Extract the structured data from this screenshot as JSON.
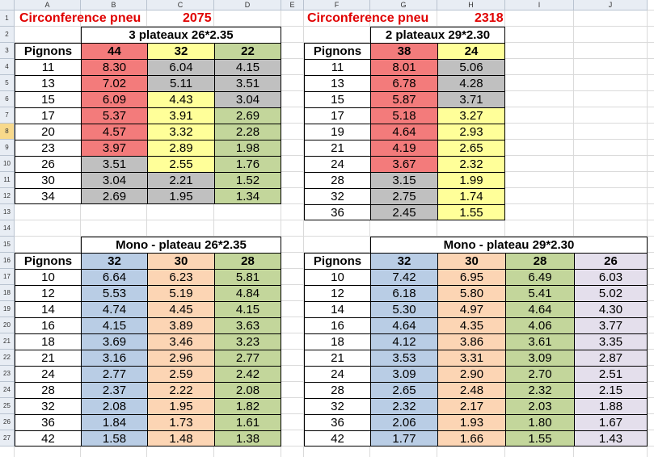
{
  "colors": {
    "red": "#f37b7b",
    "gray": "#c0c0c0",
    "yellow": "#ffff99",
    "green": "#c3d69b",
    "blue": "#b9cde5",
    "orange": "#fcd5b4",
    "lavender": "#e4dfec",
    "title_red": "#e00000"
  },
  "columns": [
    "A",
    "B",
    "C",
    "D",
    "E",
    "F",
    "G",
    "H",
    "I",
    "J"
  ],
  "rows": [
    "1",
    "2",
    "3",
    "4",
    "5",
    "6",
    "7",
    "8",
    "9",
    "10",
    "11",
    "12",
    "13",
    "14",
    "15",
    "16",
    "17",
    "18",
    "19",
    "20",
    "21",
    "22",
    "23",
    "24",
    "25",
    "26",
    "27"
  ],
  "active_rows": [
    "8"
  ],
  "left_title": {
    "label": "Circonference pneu",
    "value": "2075"
  },
  "right_title": {
    "label": "Circonference pneu",
    "value": "2318"
  },
  "table1": {
    "caption": "3 plateaux  26*2.35",
    "row_label": "Pignons",
    "headers": [
      {
        "label": "44",
        "color": "red"
      },
      {
        "label": "32",
        "color": "yellow"
      },
      {
        "label": "22",
        "color": "green"
      }
    ],
    "rows": [
      {
        "p": "11",
        "v": [
          [
            "8.30",
            "red"
          ],
          [
            "6.04",
            "gray"
          ],
          [
            "4.15",
            "gray"
          ]
        ]
      },
      {
        "p": "13",
        "v": [
          [
            "7.02",
            "red"
          ],
          [
            "5.11",
            "gray"
          ],
          [
            "3.51",
            "gray"
          ]
        ]
      },
      {
        "p": "15",
        "v": [
          [
            "6.09",
            "red"
          ],
          [
            "4.43",
            "yellow"
          ],
          [
            "3.04",
            "gray"
          ]
        ]
      },
      {
        "p": "17",
        "v": [
          [
            "5.37",
            "red"
          ],
          [
            "3.91",
            "yellow"
          ],
          [
            "2.69",
            "green"
          ]
        ]
      },
      {
        "p": "20",
        "v": [
          [
            "4.57",
            "red"
          ],
          [
            "3.32",
            "yellow"
          ],
          [
            "2.28",
            "green"
          ]
        ]
      },
      {
        "p": "23",
        "v": [
          [
            "3.97",
            "red"
          ],
          [
            "2.89",
            "yellow"
          ],
          [
            "1.98",
            "green"
          ]
        ]
      },
      {
        "p": "26",
        "v": [
          [
            "3.51",
            "gray"
          ],
          [
            "2.55",
            "yellow"
          ],
          [
            "1.76",
            "green"
          ]
        ]
      },
      {
        "p": "30",
        "v": [
          [
            "3.04",
            "gray"
          ],
          [
            "2.21",
            "gray"
          ],
          [
            "1.52",
            "green"
          ]
        ]
      },
      {
        "p": "34",
        "v": [
          [
            "2.69",
            "gray"
          ],
          [
            "1.95",
            "gray"
          ],
          [
            "1.34",
            "green"
          ]
        ]
      }
    ]
  },
  "table2": {
    "caption": "2 plateaux 29*2.30",
    "row_label": "Pignons",
    "headers": [
      {
        "label": "38",
        "color": "red"
      },
      {
        "label": "24",
        "color": "yellow"
      }
    ],
    "rows": [
      {
        "p": "11",
        "v": [
          [
            "8.01",
            "red"
          ],
          [
            "5.06",
            "gray"
          ]
        ]
      },
      {
        "p": "13",
        "v": [
          [
            "6.78",
            "red"
          ],
          [
            "4.28",
            "gray"
          ]
        ]
      },
      {
        "p": "15",
        "v": [
          [
            "5.87",
            "red"
          ],
          [
            "3.71",
            "gray"
          ]
        ]
      },
      {
        "p": "17",
        "v": [
          [
            "5.18",
            "red"
          ],
          [
            "3.27",
            "yellow"
          ]
        ]
      },
      {
        "p": "19",
        "v": [
          [
            "4.64",
            "red"
          ],
          [
            "2.93",
            "yellow"
          ]
        ]
      },
      {
        "p": "21",
        "v": [
          [
            "4.19",
            "red"
          ],
          [
            "2.65",
            "yellow"
          ]
        ]
      },
      {
        "p": "24",
        "v": [
          [
            "3.67",
            "red"
          ],
          [
            "2.32",
            "yellow"
          ]
        ]
      },
      {
        "p": "28",
        "v": [
          [
            "3.15",
            "gray"
          ],
          [
            "1.99",
            "yellow"
          ]
        ]
      },
      {
        "p": "32",
        "v": [
          [
            "2.75",
            "gray"
          ],
          [
            "1.74",
            "yellow"
          ]
        ]
      },
      {
        "p": "36",
        "v": [
          [
            "2.45",
            "gray"
          ],
          [
            "1.55",
            "yellow"
          ]
        ]
      }
    ]
  },
  "table3": {
    "caption": "Mono - plateau 26*2.35",
    "row_label": "Pignons",
    "headers": [
      {
        "label": "32",
        "color": "blue"
      },
      {
        "label": "30",
        "color": "orange"
      },
      {
        "label": "28",
        "color": "green"
      }
    ],
    "rows": [
      {
        "p": "10",
        "v": [
          "6.64",
          "6.23",
          "5.81"
        ]
      },
      {
        "p": "12",
        "v": [
          "5.53",
          "5.19",
          "4.84"
        ]
      },
      {
        "p": "14",
        "v": [
          "4.74",
          "4.45",
          "4.15"
        ]
      },
      {
        "p": "16",
        "v": [
          "4.15",
          "3.89",
          "3.63"
        ]
      },
      {
        "p": "18",
        "v": [
          "3.69",
          "3.46",
          "3.23"
        ]
      },
      {
        "p": "21",
        "v": [
          "3.16",
          "2.96",
          "2.77"
        ]
      },
      {
        "p": "24",
        "v": [
          "2.77",
          "2.59",
          "2.42"
        ]
      },
      {
        "p": "28",
        "v": [
          "2.37",
          "2.22",
          "2.08"
        ]
      },
      {
        "p": "32",
        "v": [
          "2.08",
          "1.95",
          "1.82"
        ]
      },
      {
        "p": "36",
        "v": [
          "1.84",
          "1.73",
          "1.61"
        ]
      },
      {
        "p": "42",
        "v": [
          "1.58",
          "1.48",
          "1.38"
        ]
      }
    ]
  },
  "table4": {
    "caption": "Mono - plateau 29*2.30",
    "row_label": "Pignons",
    "headers": [
      {
        "label": "32",
        "color": "blue"
      },
      {
        "label": "30",
        "color": "orange"
      },
      {
        "label": "28",
        "color": "green"
      },
      {
        "label": "26",
        "color": "lavender"
      }
    ],
    "rows": [
      {
        "p": "10",
        "v": [
          "7.42",
          "6.95",
          "6.49",
          "6.03"
        ]
      },
      {
        "p": "12",
        "v": [
          "6.18",
          "5.80",
          "5.41",
          "5.02"
        ]
      },
      {
        "p": "14",
        "v": [
          "5.30",
          "4.97",
          "4.64",
          "4.30"
        ]
      },
      {
        "p": "16",
        "v": [
          "4.64",
          "4.35",
          "4.06",
          "3.77"
        ]
      },
      {
        "p": "18",
        "v": [
          "4.12",
          "3.86",
          "3.61",
          "3.35"
        ]
      },
      {
        "p": "21",
        "v": [
          "3.53",
          "3.31",
          "3.09",
          "2.87"
        ]
      },
      {
        "p": "24",
        "v": [
          "3.09",
          "2.90",
          "2.70",
          "2.51"
        ]
      },
      {
        "p": "28",
        "v": [
          "2.65",
          "2.48",
          "2.32",
          "2.15"
        ]
      },
      {
        "p": "32",
        "v": [
          "2.32",
          "2.17",
          "2.03",
          "1.88"
        ]
      },
      {
        "p": "36",
        "v": [
          "2.06",
          "1.93",
          "1.80",
          "1.67"
        ]
      },
      {
        "p": "42",
        "v": [
          "1.77",
          "1.66",
          "1.55",
          "1.43"
        ]
      }
    ]
  }
}
